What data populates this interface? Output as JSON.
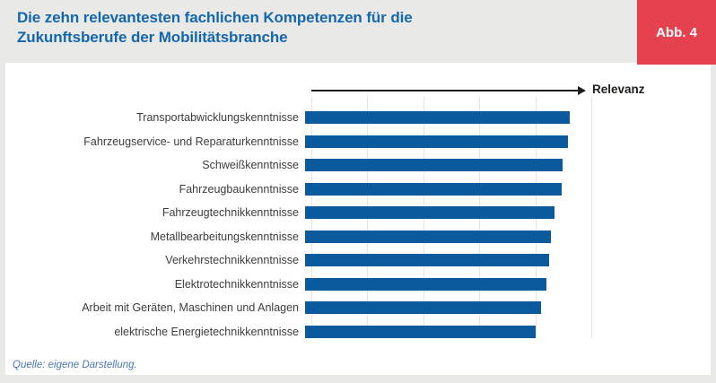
{
  "header": {
    "title_lines": [
      "Die zehn relevantesten fachlichen Kompetenzen für die",
      "Zukunftsberufe der Mobilitätsbranche"
    ],
    "figure_badge": "Abb. 4"
  },
  "chart_data": {
    "type": "bar",
    "orientation": "horizontal",
    "title": "Die zehn relevantesten fachlichen Kompetenzen für die Zukunftsberufe der Mobilitätsbranche",
    "axis_label": "Relevanz",
    "unit": "relative relevance, percent of axis length (axis itself is unlabeled; values estimated from bar lengths)",
    "categories": [
      "Transportabwicklungskenntnisse",
      "Fahrzeugservice- und Reparaturkenntnisse",
      "Schweißkenntnisse",
      "Fahrzeugbaukenntnisse",
      "Fahrzeugtechnikkenntnisse",
      "Metallbearbeitungskenntnisse",
      "Verkehrstechnikkenntnisse",
      "Elektrotechnikkenntnisse",
      "Arbeit mit Geräten, Maschinen und Anlagen",
      "elektrische Energietechnikkenntnisse"
    ],
    "values": [
      94.5,
      93.9,
      91.9,
      91.6,
      89.0,
      87.7,
      87.1,
      86.1,
      84.2,
      82.3
    ],
    "xlim": [
      0,
      100
    ],
    "gridline_positions": [
      0,
      20,
      40,
      60,
      80,
      100
    ],
    "grid": "vertical gridlines only",
    "legend": "none"
  },
  "footer": {
    "source": "Quelle: eigene Darstellung."
  },
  "colors": {
    "bar": "#0b5a9d",
    "red": "#e5414f",
    "title_blue": "#1467ac",
    "page_bg": "#e9e9e7",
    "panel_bg": "#ffffff",
    "gridline": "#e4e4e4",
    "label_text": "#3d3d3c",
    "axis_text": "#1d1d1b",
    "source_text": "#4a77b5",
    "badge_text": "#ffffff"
  }
}
